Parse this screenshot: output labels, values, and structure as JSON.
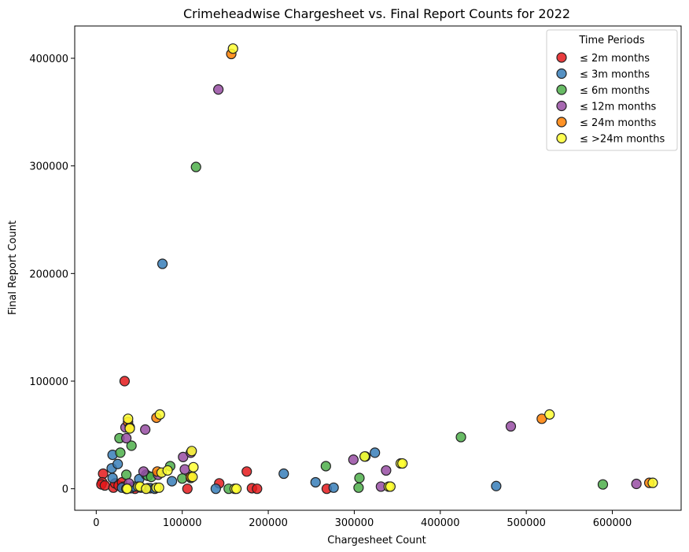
{
  "chart_data": {
    "type": "scatter",
    "title": "Crimeheadwise Chargesheet vs. Final Report Counts for 2022",
    "xlabel": "Chargesheet Count",
    "ylabel": "Final Report Count",
    "xlim": [
      -25000,
      680000
    ],
    "ylim": [
      -20000,
      430000
    ],
    "xticks": [
      0,
      100000,
      200000,
      300000,
      400000,
      500000,
      600000
    ],
    "yticks": [
      0,
      100000,
      200000,
      300000,
      400000
    ],
    "xtick_labels": [
      "0",
      "100000",
      "200000",
      "300000",
      "400000",
      "500000",
      "600000"
    ],
    "ytick_labels": [
      "0",
      "100000",
      "200000",
      "300000",
      "400000"
    ],
    "grid": false,
    "legend": {
      "title": "Time Periods",
      "placement": "top-right"
    },
    "series": [
      {
        "name": "≤ 2m months",
        "color": "#e41a1c",
        "points": [
          [
            8000,
            14000
          ],
          [
            7000,
            6000
          ],
          [
            6000,
            4000
          ],
          [
            10000,
            3000
          ],
          [
            20000,
            1000
          ],
          [
            22000,
            5000
          ],
          [
            26000,
            3000
          ],
          [
            30000,
            6000
          ],
          [
            33000,
            100000
          ],
          [
            32000,
            2000
          ],
          [
            35000,
            0
          ],
          [
            40000,
            1000
          ],
          [
            45000,
            0
          ],
          [
            60000,
            500
          ],
          [
            106000,
            0
          ],
          [
            143000,
            5000
          ],
          [
            175000,
            16000
          ],
          [
            181000,
            500
          ],
          [
            187000,
            0
          ],
          [
            268000,
            0
          ]
        ]
      },
      {
        "name": "≤ 3m months",
        "color": "#377eb8",
        "points": [
          [
            18000,
            19000
          ],
          [
            19000,
            31500
          ],
          [
            19000,
            10000
          ],
          [
            25000,
            23000
          ],
          [
            30000,
            1000
          ],
          [
            40000,
            500
          ],
          [
            44000,
            2000
          ],
          [
            50000,
            9000
          ],
          [
            52000,
            1000
          ],
          [
            58000,
            13000
          ],
          [
            63000,
            500
          ],
          [
            68000,
            0
          ],
          [
            77000,
            209000
          ],
          [
            88000,
            7000
          ],
          [
            139000,
            0
          ],
          [
            218000,
            14000
          ],
          [
            255000,
            6000
          ],
          [
            276000,
            1000
          ],
          [
            324000,
            33500
          ],
          [
            465000,
            2500
          ]
        ]
      },
      {
        "name": "≤ 6m months",
        "color": "#4daf4a",
        "points": [
          [
            27000,
            47000
          ],
          [
            28000,
            33500
          ],
          [
            35000,
            13000
          ],
          [
            41000,
            40000
          ],
          [
            60000,
            12000
          ],
          [
            64000,
            11000
          ],
          [
            86000,
            21000
          ],
          [
            100000,
            9500
          ],
          [
            110000,
            10000
          ],
          [
            116000,
            299000
          ],
          [
            154000,
            0
          ],
          [
            267000,
            21000
          ],
          [
            305000,
            1000
          ],
          [
            306000,
            10000
          ],
          [
            313000,
            30000
          ],
          [
            424000,
            48000
          ],
          [
            589000,
            4000
          ]
        ]
      },
      {
        "name": "≤ 12m months",
        "color": "#984ea3",
        "points": [
          [
            34000,
            57000
          ],
          [
            35000,
            47000
          ],
          [
            38000,
            5000
          ],
          [
            55000,
            16000
          ],
          [
            57000,
            55000
          ],
          [
            72000,
            13000
          ],
          [
            101000,
            29500
          ],
          [
            103000,
            18000
          ],
          [
            110000,
            33500
          ],
          [
            142000,
            371000
          ],
          [
            299000,
            27000
          ],
          [
            331000,
            2000
          ],
          [
            337000,
            17000
          ],
          [
            482000,
            58000
          ],
          [
            628000,
            4500
          ]
        ]
      },
      {
        "name": "≤ 24m months",
        "color": "#ff7f00",
        "points": [
          [
            37000,
            62000
          ],
          [
            39000,
            57000
          ],
          [
            70000,
            66000
          ],
          [
            71000,
            16000
          ],
          [
            110000,
            11000
          ],
          [
            157000,
            404000
          ],
          [
            518000,
            65000
          ],
          [
            643000,
            5500
          ]
        ]
      },
      {
        "name": "≤ >24m months",
        "color": "#ffff33",
        "points": [
          [
            35000,
            0
          ],
          [
            36000,
            0
          ],
          [
            37000,
            65000
          ],
          [
            39000,
            56000
          ],
          [
            49000,
            2000
          ],
          [
            51000,
            2000
          ],
          [
            58000,
            0
          ],
          [
            70000,
            1000
          ],
          [
            73000,
            1000
          ],
          [
            74000,
            69000
          ],
          [
            76000,
            15000
          ],
          [
            83000,
            17000
          ],
          [
            111000,
            35000
          ],
          [
            112000,
            11000
          ],
          [
            113000,
            20000
          ],
          [
            159000,
            409000
          ],
          [
            161000,
            0
          ],
          [
            163000,
            0
          ],
          [
            312000,
            30000
          ],
          [
            340000,
            2000
          ],
          [
            342000,
            2000
          ],
          [
            354000,
            23500
          ],
          [
            356000,
            23500
          ],
          [
            527000,
            69000
          ],
          [
            647000,
            5500
          ]
        ]
      }
    ]
  }
}
